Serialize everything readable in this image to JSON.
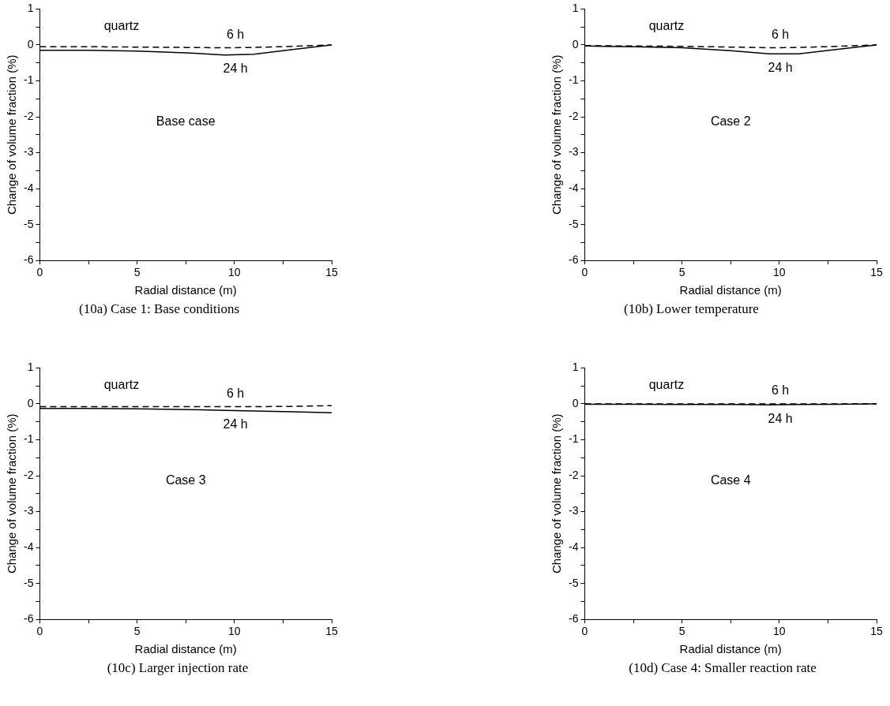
{
  "chart_data": [
    {
      "type": "line",
      "title": "(10a) Case 1: Base conditions",
      "xlabel": "Radial distance (m)",
      "ylabel": "Change of volume fraction (%)",
      "annotations": [
        "quartz",
        "Base case"
      ],
      "x": [
        0,
        2.5,
        5,
        7.5,
        9.5,
        11,
        13,
        15
      ],
      "xlim": [
        0,
        15
      ],
      "ylim": [
        -6,
        1
      ],
      "xticks": [
        0,
        {
          "value": 2.5,
          "label": null
        },
        5,
        {
          "value": 7.5,
          "label": null
        },
        10,
        {
          "value": 12.5,
          "label": null
        },
        15
      ],
      "yticks": [
        -6,
        {
          "value": -5.5,
          "label": null
        },
        -5,
        {
          "value": -4.5,
          "label": null
        },
        -4,
        {
          "value": -3.5,
          "label": null
        },
        -3,
        {
          "value": -2.5,
          "label": null
        },
        -2,
        {
          "value": -1.5,
          "label": null
        },
        -1,
        {
          "value": -0.5,
          "label": null
        },
        0,
        {
          "value": 0.5,
          "label": null
        },
        1
      ],
      "grid": false,
      "legend": false,
      "marker": "none",
      "series": [
        {
          "name": "6 h",
          "color": "#000000",
          "line_style": "dashed",
          "values": [
            -0.05,
            -0.05,
            -0.06,
            -0.07,
            -0.08,
            -0.07,
            -0.04,
            0
          ]
        },
        {
          "name": "24 h",
          "color": "#000000",
          "line_style": "solid",
          "values": [
            -0.15,
            -0.15,
            -0.17,
            -0.22,
            -0.28,
            -0.26,
            -0.13,
            0
          ]
        }
      ]
    },
    {
      "type": "line",
      "title": "(10b) Lower temperature",
      "xlabel": "Radial distance (m)",
      "ylabel": "Change of volume fraction (%)",
      "annotations": [
        "quartz",
        "Case 2"
      ],
      "x": [
        0,
        2.5,
        5,
        7.5,
        9.5,
        11,
        13,
        15
      ],
      "xlim": [
        0,
        15
      ],
      "ylim": [
        -6,
        1
      ],
      "xticks": [
        0,
        {
          "value": 2.5,
          "label": null
        },
        5,
        {
          "value": 7.5,
          "label": null
        },
        10,
        {
          "value": 12.5,
          "label": null
        },
        15
      ],
      "yticks": [
        -6,
        {
          "value": -5.5,
          "label": null
        },
        -5,
        {
          "value": -4.5,
          "label": null
        },
        -4,
        {
          "value": -3.5,
          "label": null
        },
        -3,
        {
          "value": -2.5,
          "label": null
        },
        -2,
        {
          "value": -1.5,
          "label": null
        },
        -1,
        {
          "value": -0.5,
          "label": null
        },
        0,
        {
          "value": 0.5,
          "label": null
        },
        1
      ],
      "grid": false,
      "legend": false,
      "marker": "none",
      "series": [
        {
          "name": "6 h",
          "color": "#000000",
          "line_style": "dashed",
          "values": [
            -0.02,
            -0.03,
            -0.04,
            -0.06,
            -0.08,
            -0.07,
            -0.04,
            0
          ]
        },
        {
          "name": "24 h",
          "color": "#000000",
          "line_style": "solid",
          "values": [
            -0.03,
            -0.05,
            -0.08,
            -0.16,
            -0.25,
            -0.25,
            -0.12,
            0
          ]
        }
      ]
    },
    {
      "type": "line",
      "title": "(10c) Larger injection rate",
      "xlabel": "Radial distance (m)",
      "ylabel": "Change of volume fraction (%)",
      "annotations": [
        "quartz",
        "Case 3"
      ],
      "x": [
        0,
        2.5,
        5,
        7.5,
        9.5,
        11,
        13,
        15
      ],
      "xlim": [
        0,
        15
      ],
      "ylim": [
        -6,
        1
      ],
      "xticks": [
        0,
        {
          "value": 2.5,
          "label": null
        },
        5,
        {
          "value": 7.5,
          "label": null
        },
        10,
        {
          "value": 12.5,
          "label": null
        },
        15
      ],
      "yticks": [
        -6,
        {
          "value": -5.5,
          "label": null
        },
        -5,
        {
          "value": -4.5,
          "label": null
        },
        -4,
        {
          "value": -3.5,
          "label": null
        },
        -3,
        {
          "value": -2.5,
          "label": null
        },
        -2,
        {
          "value": -1.5,
          "label": null
        },
        -1,
        {
          "value": -0.5,
          "label": null
        },
        0,
        {
          "value": 0.5,
          "label": null
        },
        1
      ],
      "grid": false,
      "legend": false,
      "marker": "none",
      "series": [
        {
          "name": "6 h",
          "color": "#000000",
          "line_style": "dashed",
          "values": [
            -0.08,
            -0.08,
            -0.08,
            -0.08,
            -0.08,
            -0.08,
            -0.07,
            -0.05
          ]
        },
        {
          "name": "24 h",
          "color": "#000000",
          "line_style": "solid",
          "values": [
            -0.13,
            -0.13,
            -0.14,
            -0.16,
            -0.18,
            -0.2,
            -0.22,
            -0.25
          ]
        }
      ]
    },
    {
      "type": "line",
      "title": "(10d) Case 4: Smaller reaction rate",
      "xlabel": "Radial distance (m)",
      "ylabel": "Change of volume fraction (%)",
      "annotations": [
        "quartz",
        "Case 4"
      ],
      "x": [
        0,
        2.5,
        5,
        7.5,
        9.5,
        11,
        13,
        15
      ],
      "xlim": [
        0,
        15
      ],
      "ylim": [
        -6,
        1
      ],
      "xticks": [
        0,
        {
          "value": 2.5,
          "label": null
        },
        5,
        {
          "value": 7.5,
          "label": null
        },
        10,
        {
          "value": 12.5,
          "label": null
        },
        15
      ],
      "yticks": [
        -6,
        {
          "value": -5.5,
          "label": null
        },
        -5,
        {
          "value": -4.5,
          "label": null
        },
        -4,
        {
          "value": -3.5,
          "label": null
        },
        -3,
        {
          "value": -2.5,
          "label": null
        },
        -2,
        {
          "value": -1.5,
          "label": null
        },
        -1,
        {
          "value": -0.5,
          "label": null
        },
        0,
        {
          "value": 0.5,
          "label": null
        },
        1
      ],
      "grid": false,
      "legend": false,
      "marker": "none",
      "series": [
        {
          "name": "6 h",
          "color": "#000000",
          "line_style": "dashed",
          "values": [
            0,
            0,
            0,
            0,
            0,
            0,
            0,
            0
          ]
        },
        {
          "name": "24 h",
          "color": "#000000",
          "line_style": "solid",
          "values": [
            -0.01,
            -0.01,
            -0.02,
            -0.02,
            -0.03,
            -0.02,
            -0.01,
            0
          ]
        }
      ]
    }
  ]
}
